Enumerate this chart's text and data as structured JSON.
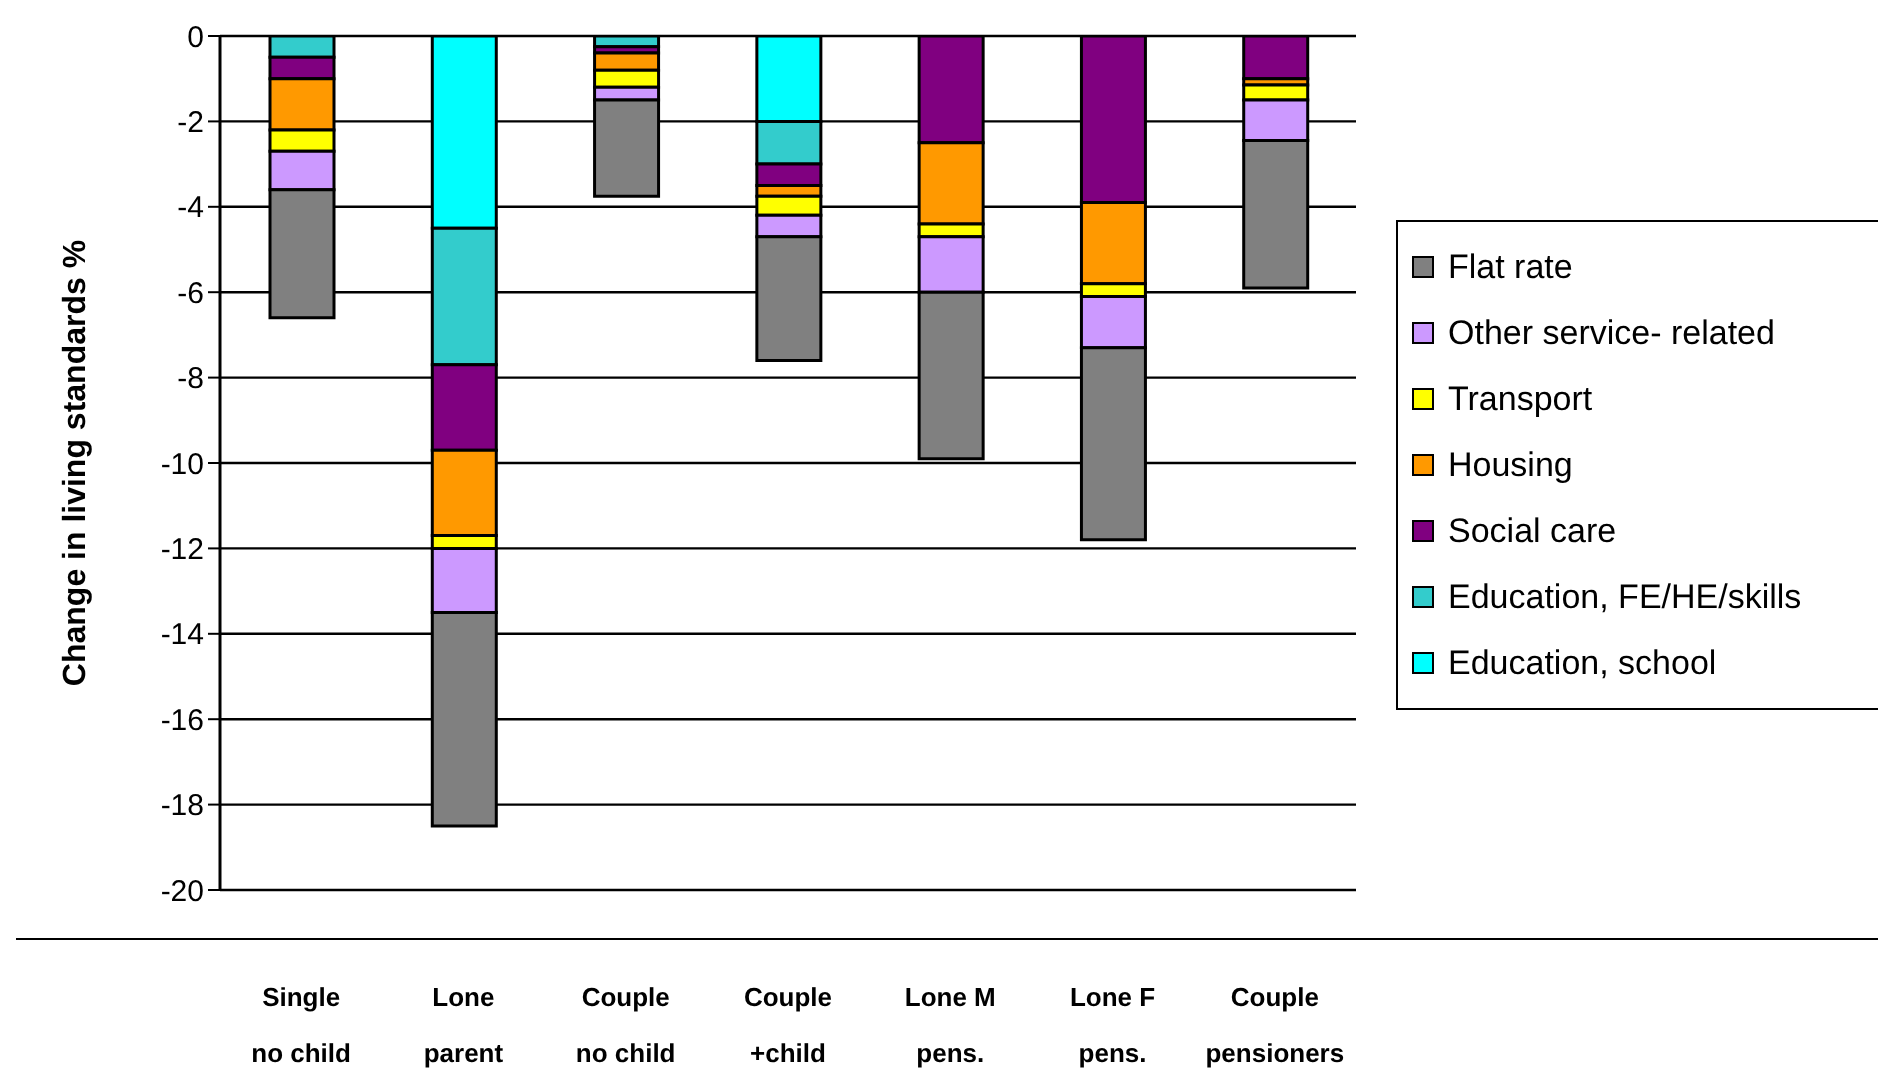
{
  "chart_data": {
    "type": "bar",
    "stacked": true,
    "ylabel": "Change in living standards %",
    "categories": [
      "Single\nno child",
      "Lone\nparent",
      "Couple\nno child",
      "Couple\n+child",
      "Lone M\npens.",
      "Lone F\npens.",
      "Couple\npensioners"
    ],
    "series": [
      {
        "name": "Education, school",
        "color": "#00ffff",
        "values": [
          0,
          -4.5,
          0,
          -2.0,
          0,
          0,
          0
        ]
      },
      {
        "name": "Education, FE/HE/skills",
        "color": "#33cccc",
        "values": [
          -0.5,
          -3.2,
          -0.25,
          -1.0,
          0,
          0,
          0
        ]
      },
      {
        "name": "Social care",
        "color": "#800080",
        "values": [
          -0.5,
          -2.0,
          -0.15,
          -0.5,
          -2.5,
          -3.9,
          -1.0
        ]
      },
      {
        "name": "Housing",
        "color": "#ff9900",
        "values": [
          -1.2,
          -2.0,
          -0.4,
          -0.25,
          -1.9,
          -1.9,
          -0.15
        ]
      },
      {
        "name": "Transport",
        "color": "#ffff00",
        "values": [
          -0.5,
          -0.3,
          -0.4,
          -0.45,
          -0.3,
          -0.3,
          -0.35
        ]
      },
      {
        "name": "Other service- related",
        "color": "#cc99ff",
        "values": [
          -0.9,
          -1.5,
          -0.3,
          -0.5,
          -1.3,
          -1.2,
          -0.95
        ]
      },
      {
        "name": "Flat rate",
        "color": "#808080",
        "values": [
          -3.0,
          -5.0,
          -2.25,
          -2.9,
          -3.9,
          -4.5,
          -3.45
        ]
      }
    ],
    "ylim": [
      -20,
      0
    ],
    "yticks": [
      -20,
      -18,
      -16,
      -14,
      -12,
      -10,
      -8,
      -6,
      -4,
      -2,
      0
    ],
    "grid": "y",
    "legend": "right"
  }
}
